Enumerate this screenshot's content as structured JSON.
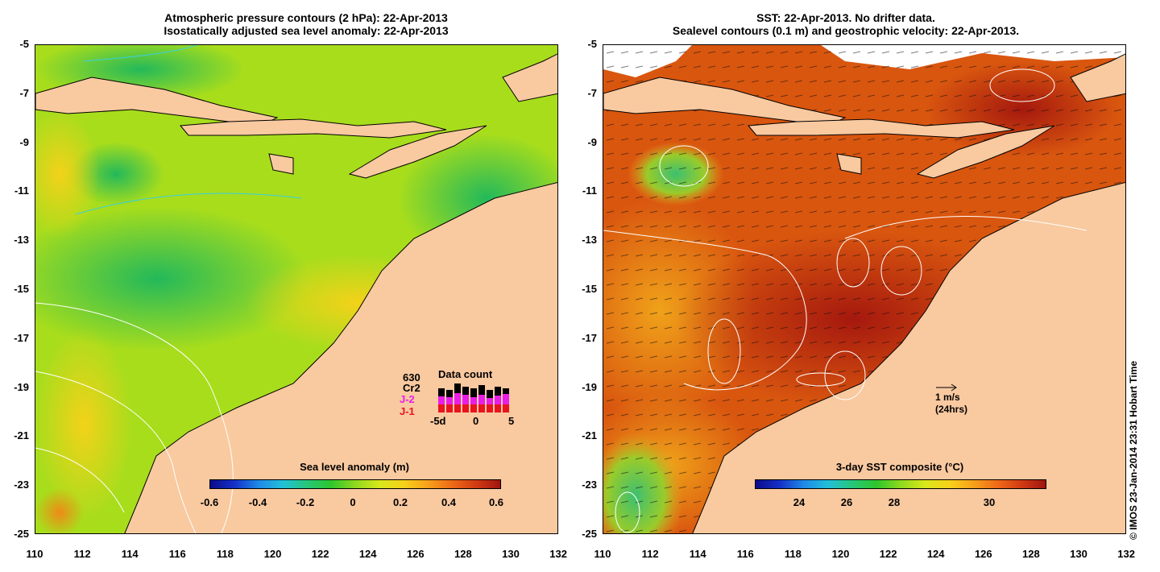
{
  "left_panel": {
    "title_line1": "Atmospheric pressure contours (2 hPa): 22-Apr-2013",
    "title_line2": "Isostatically adjusted sea level anomaly: 22-Apr-2013",
    "colorbar": {
      "title": "Sea level anomaly (m)",
      "ticks": [
        "-0.6",
        "-0.4",
        "-0.2",
        "0",
        "0.2",
        "0.4",
        "0.6"
      ]
    },
    "data_count": {
      "title": "Data count",
      "label_630": "630",
      "label_cr2": "Cr2",
      "label_j2": "J-2",
      "label_j1": "J-1",
      "x_ticks": [
        "-5d",
        "0",
        "5"
      ],
      "j2_color": "#e81ee8",
      "j1_color": "#e8141e"
    }
  },
  "right_panel": {
    "title_line1": "SST: 22-Apr-2013. No drifter data.",
    "title_line2": "Sealevel contours (0.1 m) and geostrophic velocity: 22-Apr-2013.",
    "colorbar": {
      "title": "3-day SST composite (°C)",
      "ticks": [
        "24",
        "26",
        "28",
        "30"
      ]
    },
    "velocity_scale_line1": "1 m/s",
    "velocity_scale_line2": "(24hrs)"
  },
  "axes": {
    "y_ticks": [
      "-5",
      "-7",
      "-9",
      "-11",
      "-13",
      "-15",
      "-17",
      "-19",
      "-21",
      "-23",
      "-25"
    ],
    "x_ticks": [
      "110",
      "112",
      "114",
      "116",
      "118",
      "120",
      "122",
      "124",
      "126",
      "128",
      "130",
      "132"
    ]
  },
  "credit": "© IMOS 23-Jan-2014 23:31 Hobart Time",
  "colors": {
    "land": "#f9c9a0",
    "ocean_anomaly": "#a8dd1c",
    "ocean_sst": "#d9560f"
  }
}
